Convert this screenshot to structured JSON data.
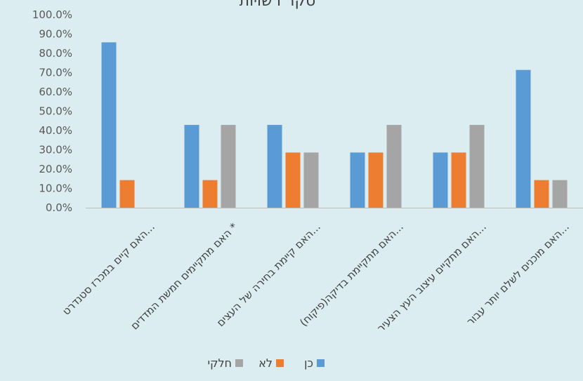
{
  "chart_data": {
    "type": "bar",
    "title": "סקר רשויות",
    "categories": [
      "האם קיים במכרז סטנדרט...",
      "האם מתקיימים חמשת המדדים *",
      "האם קיימת בחירה של העצים...",
      "האם מתקיימת בדיקה(פיקוח)...",
      "האם מתקיים עיצוב העץ הצעיר...",
      "האם מוכנים לשלם יותר עבור..."
    ],
    "series": [
      {
        "name": "כן",
        "color": "#5b9bd5",
        "values": [
          85.7,
          42.9,
          42.9,
          28.6,
          28.6,
          71.4
        ]
      },
      {
        "name": "לא",
        "color": "#ed7d31",
        "values": [
          14.3,
          14.3,
          28.6,
          28.6,
          28.6,
          14.3
        ]
      },
      {
        "name": "חלקי",
        "color": "#a5a5a5",
        "values": [
          0,
          42.9,
          28.6,
          42.9,
          42.9,
          14.3
        ]
      }
    ],
    "ylim": [
      0,
      100
    ],
    "yticks": [
      "0.0%",
      "10.0%",
      "20.0%",
      "30.0%",
      "40.0%",
      "50.0%",
      "60.0%",
      "70.0%",
      "80.0%",
      "90.0%",
      "100.0%"
    ],
    "legend_position": "bottom",
    "grid": false
  }
}
